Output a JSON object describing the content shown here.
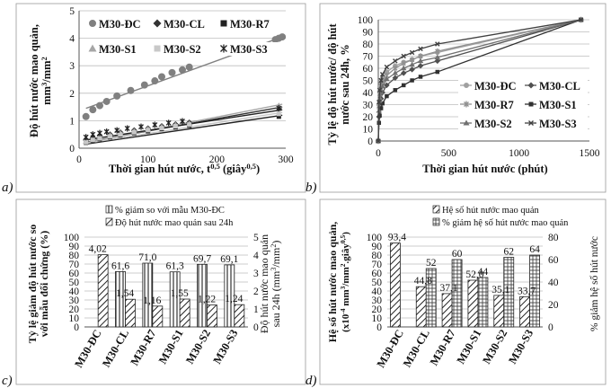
{
  "panels": {
    "a": "a)",
    "b": "b)",
    "c": "c)",
    "d": "d)"
  },
  "chart_data": [
    {
      "id": "a",
      "type": "scatter",
      "xlabel": "Thời gian hút nước, t^0,5 (giây^0,5)",
      "ylabel": "Độ hút nước mao quản, mm^3/mm^2",
      "xlim": [
        0,
        300
      ],
      "ylim": [
        0,
        5
      ],
      "xticks": [
        0,
        100,
        200,
        300
      ],
      "yticks": [
        0,
        1,
        2,
        3,
        4,
        5
      ],
      "grid": "horizontal",
      "legend_position": "top",
      "series": [
        {
          "name": "M30-ĐC",
          "marker": "circle",
          "color": "#808080",
          "x": [
            10,
            20,
            30,
            40,
            55,
            75,
            95,
            110,
            120,
            135,
            150,
            160,
            285,
            290,
            295
          ],
          "y": [
            1.15,
            1.4,
            1.55,
            1.7,
            1.9,
            2.1,
            2.3,
            2.45,
            2.6,
            2.75,
            2.85,
            2.95,
            3.95,
            4.0,
            4.05
          ],
          "fit": [
            [
              10,
              1.45
            ],
            [
              295,
              4.05
            ]
          ]
        },
        {
          "name": "M30-CL",
          "marker": "diamond",
          "color": "#333333",
          "x": [
            10,
            20,
            30,
            45,
            60,
            80,
            100,
            120,
            140,
            160,
            290
          ],
          "y": [
            0.3,
            0.38,
            0.45,
            0.5,
            0.57,
            0.65,
            0.72,
            0.8,
            0.87,
            0.93,
            1.45
          ],
          "fit": [
            [
              10,
              0.22
            ],
            [
              295,
              1.5
            ]
          ]
        },
        {
          "name": "M30-R7",
          "marker": "square",
          "color": "#222222",
          "x": [
            10,
            20,
            30,
            45,
            60,
            80,
            100,
            120,
            140,
            160,
            290
          ],
          "y": [
            0.2,
            0.27,
            0.33,
            0.4,
            0.47,
            0.55,
            0.62,
            0.7,
            0.76,
            0.82,
            1.15
          ],
          "fit": [
            [
              10,
              0.15
            ],
            [
              295,
              1.2
            ]
          ]
        },
        {
          "name": "M30-S1",
          "marker": "triangle",
          "color": "#a6a6a6",
          "x": [
            10,
            20,
            30,
            45,
            60,
            80,
            100,
            120,
            140,
            160,
            290
          ],
          "y": [
            0.25,
            0.33,
            0.4,
            0.47,
            0.55,
            0.62,
            0.7,
            0.78,
            0.85,
            0.9,
            1.55
          ],
          "fit": [
            [
              10,
              0.2
            ],
            [
              295,
              1.6
            ]
          ]
        },
        {
          "name": "M30-S2",
          "marker": "square",
          "color": "#c8c8c8",
          "x": [
            10,
            20,
            30,
            45,
            60,
            80,
            100,
            120,
            140,
            160,
            290
          ],
          "y": [
            0.22,
            0.3,
            0.36,
            0.43,
            0.5,
            0.58,
            0.66,
            0.73,
            0.8,
            0.86,
            1.25
          ],
          "fit": [
            [
              10,
              0.18
            ],
            [
              295,
              1.3
            ]
          ]
        },
        {
          "name": "M30-S3",
          "marker": "star",
          "color": "#222222",
          "x": [
            10,
            20,
            30,
            40,
            55,
            70,
            90,
            110,
            130,
            150,
            290
          ],
          "y": [
            0.4,
            0.5,
            0.55,
            0.6,
            0.65,
            0.72,
            0.78,
            0.85,
            0.92,
            0.98,
            1.45
          ],
          "fit": [
            [
              10,
              0.3
            ],
            [
              295,
              1.4
            ]
          ]
        }
      ]
    },
    {
      "id": "b",
      "type": "line",
      "xlabel": "Thời gian hút nước (phút)",
      "ylabel": "Tỷ lệ độ hút nước/ độ hút nước sau 24h, %",
      "xlim": [
        0,
        1500
      ],
      "ylim": [
        0,
        100
      ],
      "xticks": [
        0,
        500,
        1000,
        1500
      ],
      "yticks": [
        0,
        10,
        20,
        30,
        40,
        50,
        60,
        70,
        80,
        90,
        100
      ],
      "grid": "horizontal",
      "legend_position": "center-right",
      "x": [
        0,
        5,
        10,
        20,
        30,
        60,
        120,
        180,
        240,
        300,
        420,
        1440
      ],
      "series": [
        {
          "name": "M30-ĐC",
          "marker": "circle",
          "color": "#a0a0a0",
          "values": [
            0,
            30,
            40,
            47,
            52,
            57,
            62,
            65,
            67,
            70,
            73,
            100
          ]
        },
        {
          "name": "M30-CL",
          "marker": "diamond",
          "color": "#505050",
          "values": [
            0,
            20,
            28,
            35,
            40,
            46,
            52,
            56,
            59,
            62,
            66,
            100
          ]
        },
        {
          "name": "M30-R7",
          "marker": "star",
          "color": "#909090",
          "values": [
            0,
            28,
            36,
            43,
            48,
            54,
            60,
            64,
            67,
            70,
            74,
            100
          ]
        },
        {
          "name": "M30-S1",
          "marker": "square",
          "color": "#303030",
          "values": [
            0,
            15,
            21,
            27,
            31,
            37,
            42,
            46,
            50,
            53,
            57,
            100
          ]
        },
        {
          "name": "M30-S2",
          "marker": "triangle",
          "color": "#707070",
          "values": [
            0,
            25,
            33,
            40,
            45,
            51,
            56,
            60,
            63,
            66,
            69,
            100
          ]
        },
        {
          "name": "M30-S3",
          "marker": "x",
          "color": "#404040",
          "values": [
            0,
            32,
            42,
            50,
            55,
            61,
            66,
            70,
            73,
            76,
            80,
            100
          ]
        }
      ]
    },
    {
      "id": "c",
      "type": "bar",
      "categories": [
        "M30-ĐC",
        "M30-CL",
        "M30-R7",
        "M30-S1",
        "M30-S2",
        "M30-S3"
      ],
      "ylabel": "Tỷ lệ giảm độ hút nước so với mẫu đối chứng (%)",
      "y2label": "Độ hút nước mao quản sau 24h (mm^3/mm^2)",
      "ylim": [
        0,
        100
      ],
      "y2lim": [
        0,
        5
      ],
      "yticks": [
        0,
        10,
        20,
        30,
        40,
        50,
        60,
        70,
        80,
        90,
        100
      ],
      "y2ticks": [
        0,
        1,
        2,
        3,
        4,
        5
      ],
      "grid": "horizontal",
      "legend_position": "top",
      "series": [
        {
          "name": "% giảm so với mẫu M30-ĐC",
          "axis": "left",
          "pattern": "vertical",
          "values": [
            null,
            61.6,
            71.0,
            61.3,
            69.7,
            69.1
          ],
          "labels": [
            "",
            "61,6",
            "71,0",
            "61,3",
            "69,7",
            "69,1"
          ]
        },
        {
          "name": "Độ hút nước mao quản sau 24h",
          "axis": "right",
          "pattern": "diagonal",
          "values": [
            4.02,
            1.54,
            1.16,
            1.55,
            1.22,
            1.24
          ],
          "labels": [
            "4,02",
            "1,54",
            "1,16",
            "1,55",
            "1,22",
            "1,24"
          ]
        }
      ]
    },
    {
      "id": "d",
      "type": "bar",
      "categories": [
        "M30-ĐC",
        "M30-CL",
        "M30-R7",
        "M30-S1",
        "M30-S2",
        "M30-S3"
      ],
      "ylabel": "Hệ số hút nước mao quản, (x10^-4 mm^3/mm^2.giây^0,5)",
      "y2label": "% giảm hệ số hút nước",
      "ylim": [
        0,
        100
      ],
      "y2lim": [
        0,
        80
      ],
      "yticks": [
        0,
        10,
        20,
        30,
        40,
        50,
        60,
        70,
        80,
        90,
        100
      ],
      "y2ticks": [
        0,
        20,
        40,
        60,
        80
      ],
      "grid": "horizontal",
      "legend_position": "top",
      "series": [
        {
          "name": "Hệ số hút nước mao quản",
          "axis": "left",
          "pattern": "diagonal",
          "values": [
            93.4,
            44.8,
            37.1,
            52.0,
            35.1,
            33.7
          ],
          "labels": [
            "93,4",
            "44,8",
            "37,1",
            "52,0",
            "35,1",
            "33,7"
          ]
        },
        {
          "name": "% giảm hệ số hút nước mao quản",
          "axis": "right",
          "pattern": "grid",
          "values": [
            null,
            52,
            60,
            44,
            62,
            64
          ],
          "labels": [
            "",
            "52",
            "60",
            "44",
            "62",
            "64"
          ]
        }
      ]
    }
  ]
}
